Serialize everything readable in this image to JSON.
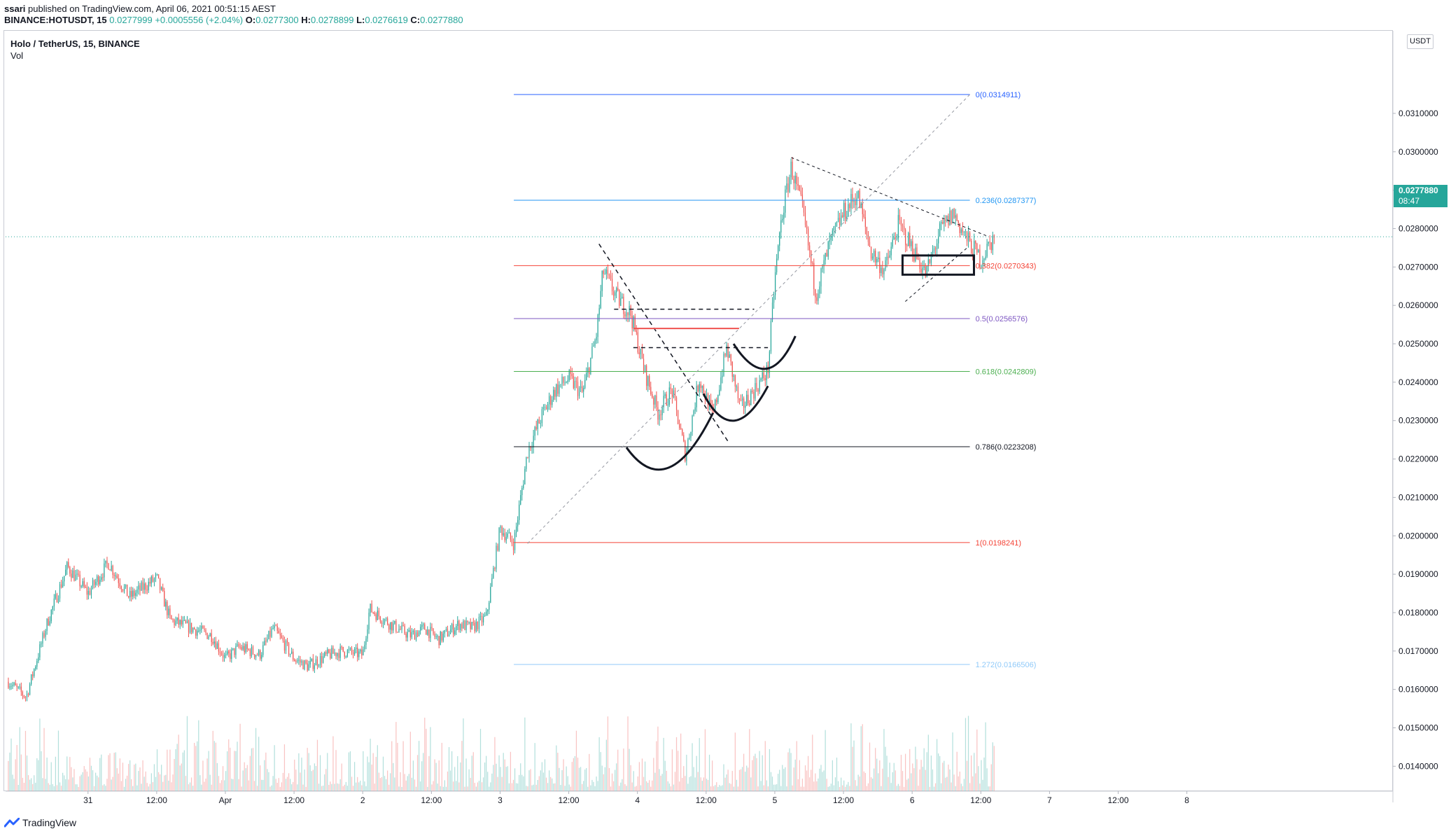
{
  "header": {
    "user": "ssari",
    "published": "published on TradingView.com, April 06, 2021 00:51:15 AEST",
    "symbol_line": "BINANCE:HOTUSDT, 15",
    "last": "0.0277999",
    "change": "+0.0005556 (+2.04%)",
    "O": "0.0277300",
    "H": "0.0278899",
    "L": "0.0276619",
    "C": "0.0277880"
  },
  "legend": {
    "symbol": "Holo / TetherUS, 15, BINANCE",
    "volume": "Vol"
  },
  "price_axis": {
    "unit": "USDT",
    "current_price": "0.0277880",
    "countdown": "08:47"
  },
  "brand": "TradingView",
  "colors": {
    "up": "#26a69a",
    "down": "#ef5350",
    "fib_0": "#2962ff",
    "fib_236": "#2196f3",
    "fib_382": "#f44336",
    "fib_5": "#7e57c2",
    "fib_618": "#4caf50",
    "fib_786": "#131722",
    "fib_1": "#f44336",
    "fib_1272": "#90caf9"
  },
  "chart_data": {
    "type": "candlestick",
    "title": "Holo / TetherUS, 15, BINANCE",
    "ylim": [
      0.01335,
      0.03315
    ],
    "xlim": [
      -0.6,
      9.5
    ],
    "y_ticks": [
      "0.0140000",
      "0.0150000",
      "0.0160000",
      "0.0170000",
      "0.0180000",
      "0.0190000",
      "0.0200000",
      "0.0210000",
      "0.0220000",
      "0.0230000",
      "0.0240000",
      "0.0250000",
      "0.0260000",
      "0.0270000",
      "0.0280000",
      "0.0290000",
      "0.0300000",
      "0.0310000"
    ],
    "y_tick_values": [
      0.014,
      0.015,
      0.016,
      0.017,
      0.018,
      0.019,
      0.02,
      0.021,
      0.022,
      0.023,
      0.024,
      0.025,
      0.026,
      0.027,
      0.028,
      0.029,
      0.03,
      0.031
    ],
    "x_ticks": [
      "31",
      "12:00",
      "Apr",
      "12:00",
      "2",
      "12:00",
      "3",
      "12:00",
      "4",
      "12:00",
      "5",
      "12:00",
      "6",
      "12:00",
      "7",
      "12:00",
      "8"
    ],
    "x_tick_values": [
      0,
      0.5,
      1,
      1.5,
      2,
      2.5,
      3,
      3.5,
      4,
      4.5,
      5,
      5.5,
      6,
      6.5,
      7,
      7.5,
      8
    ],
    "price_path": [
      [
        -0.58,
        0.0162
      ],
      [
        -0.45,
        0.0158
      ],
      [
        -0.3,
        0.0177
      ],
      [
        -0.15,
        0.0192
      ],
      [
        0.0,
        0.0185
      ],
      [
        0.15,
        0.0193
      ],
      [
        0.3,
        0.0184
      ],
      [
        0.5,
        0.0189
      ],
      [
        0.6,
        0.0178
      ],
      [
        0.75,
        0.0176
      ],
      [
        0.9,
        0.0174
      ],
      [
        1.0,
        0.0168
      ],
      [
        1.1,
        0.0171
      ],
      [
        1.25,
        0.0169
      ],
      [
        1.35,
        0.0176
      ],
      [
        1.5,
        0.0168
      ],
      [
        1.6,
        0.0166
      ],
      [
        1.75,
        0.0169
      ],
      [
        1.85,
        0.017
      ],
      [
        2.0,
        0.0169
      ],
      [
        2.05,
        0.0181
      ],
      [
        2.2,
        0.0177
      ],
      [
        2.35,
        0.0174
      ],
      [
        2.45,
        0.0176
      ],
      [
        2.55,
        0.0173
      ],
      [
        2.7,
        0.0177
      ],
      [
        2.8,
        0.0176
      ],
      [
        2.9,
        0.0179
      ],
      [
        3.0,
        0.0202
      ],
      [
        3.1,
        0.0198
      ],
      [
        3.2,
        0.0222
      ],
      [
        3.3,
        0.0231
      ],
      [
        3.4,
        0.0238
      ],
      [
        3.5,
        0.0241
      ],
      [
        3.6,
        0.0237
      ],
      [
        3.7,
        0.0252
      ],
      [
        3.75,
        0.0269
      ],
      [
        3.85,
        0.0262
      ],
      [
        3.95,
        0.0258
      ],
      [
        4.05,
        0.0243
      ],
      [
        4.15,
        0.0232
      ],
      [
        4.25,
        0.0238
      ],
      [
        4.35,
        0.0221
      ],
      [
        4.45,
        0.0241
      ],
      [
        4.55,
        0.0231
      ],
      [
        4.65,
        0.0249
      ],
      [
        4.75,
        0.0233
      ],
      [
        4.85,
        0.0238
      ],
      [
        4.95,
        0.0243
      ],
      [
        5.0,
        0.0267
      ],
      [
        5.05,
        0.0283
      ],
      [
        5.12,
        0.0296
      ],
      [
        5.2,
        0.0285
      ],
      [
        5.3,
        0.0263
      ],
      [
        5.4,
        0.0276
      ],
      [
        5.5,
        0.0284
      ],
      [
        5.6,
        0.0289
      ],
      [
        5.7,
        0.0274
      ],
      [
        5.8,
        0.0269
      ],
      [
        5.9,
        0.0281
      ],
      [
        6.0,
        0.0275
      ],
      [
        6.1,
        0.0268
      ],
      [
        6.2,
        0.0279
      ],
      [
        6.3,
        0.0284
      ],
      [
        6.4,
        0.0277
      ],
      [
        6.5,
        0.0272
      ],
      [
        6.6,
        0.0278
      ]
    ],
    "fib_levels": [
      {
        "label": "0(0.0314911)",
        "value": 0.0314911
      },
      {
        "label": "0.236(0.0287377)",
        "value": 0.0287377
      },
      {
        "label": "0.382(0.0270343)",
        "value": 0.0270343
      },
      {
        "label": "0.5(0.0256576)",
        "value": 0.0256576
      },
      {
        "label": "0.618(0.0242809)",
        "value": 0.0242809
      },
      {
        "label": "0.786(0.0223208)",
        "value": 0.0223208
      },
      {
        "label": "1(0.0198241)",
        "value": 0.0198241
      },
      {
        "label": "1.272(0.0166506)",
        "value": 0.0166506
      }
    ],
    "current_price": 0.027788
  }
}
